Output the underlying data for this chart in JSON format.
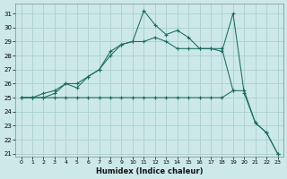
{
  "xlabel": "Humidex (Indice chaleur)",
  "bg_color": "#cce8e8",
  "grid_color": "#aad0d0",
  "line_color": "#1a6b60",
  "xlim": [
    -0.5,
    23.5
  ],
  "ylim": [
    20.8,
    31.7
  ],
  "yticks": [
    21,
    22,
    23,
    24,
    25,
    26,
    27,
    28,
    29,
    30,
    31
  ],
  "xticks": [
    0,
    1,
    2,
    3,
    4,
    5,
    6,
    7,
    8,
    9,
    10,
    11,
    12,
    13,
    14,
    15,
    16,
    17,
    18,
    19,
    20,
    21,
    22,
    23
  ],
  "series": [
    {
      "x": [
        0,
        1,
        2,
        3,
        4,
        5,
        6,
        7,
        8,
        9,
        10,
        11,
        12,
        13,
        14,
        15,
        16,
        17,
        18,
        19,
        20,
        21,
        22,
        23
      ],
      "y": [
        25.0,
        25.0,
        25.3,
        25.5,
        26.0,
        26.0,
        26.5,
        27.0,
        28.3,
        28.8,
        29.0,
        31.2,
        30.2,
        29.5,
        29.8,
        29.3,
        28.5,
        28.5,
        28.3,
        31.0,
        25.3,
        23.2,
        22.5,
        21.0
      ]
    },
    {
      "x": [
        0,
        1,
        2,
        3,
        4,
        5,
        6,
        7,
        8,
        9,
        10,
        11,
        12,
        13,
        14,
        15,
        16,
        17,
        18,
        19
      ],
      "y": [
        25.0,
        25.0,
        25.0,
        25.3,
        26.0,
        25.7,
        26.5,
        27.0,
        28.0,
        28.8,
        29.0,
        29.0,
        29.3,
        29.0,
        28.5,
        28.5,
        28.5,
        28.5,
        28.5,
        25.5
      ]
    },
    {
      "x": [
        0,
        1,
        2,
        3,
        4,
        5,
        6,
        7,
        8,
        9,
        10,
        11,
        12,
        13,
        14,
        15,
        16,
        17,
        18,
        19,
        20,
        21,
        22,
        23
      ],
      "y": [
        25.0,
        25.0,
        25.0,
        25.0,
        25.0,
        25.0,
        25.0,
        25.0,
        25.0,
        25.0,
        25.0,
        25.0,
        25.0,
        25.0,
        25.0,
        25.0,
        25.0,
        25.0,
        25.0,
        25.5,
        25.5,
        23.2,
        22.5,
        21.0
      ]
    }
  ]
}
